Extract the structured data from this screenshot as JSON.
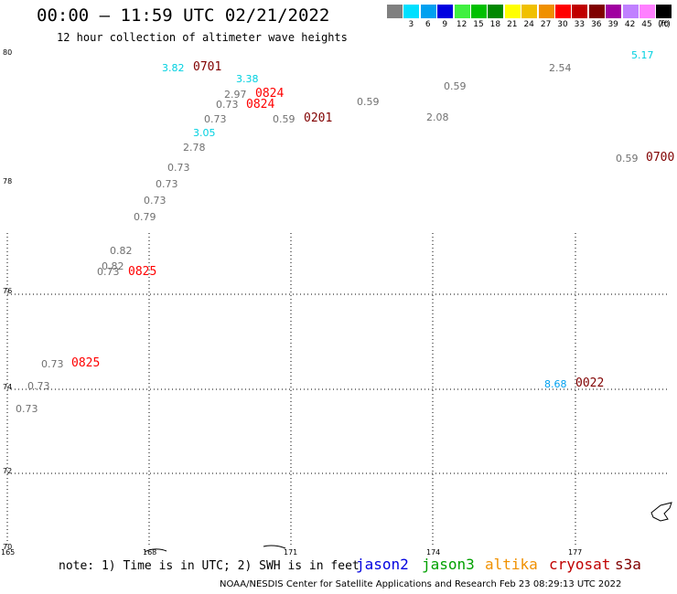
{
  "title": "00:00 – 11:59 UTC 02/21/2022",
  "subtitle": "12 hour collection of altimeter wave heights",
  "colorbar": {
    "unit": "(ft)",
    "items": [
      {
        "label": "",
        "color": "#808080"
      },
      {
        "label": "3",
        "color": "#00e0ff"
      },
      {
        "label": "6",
        "color": "#00a0f0"
      },
      {
        "label": "9",
        "color": "#0000e0"
      },
      {
        "label": "12",
        "color": "#40f040"
      },
      {
        "label": "15",
        "color": "#00c000"
      },
      {
        "label": "18",
        "color": "#008800"
      },
      {
        "label": "21",
        "color": "#ffff00"
      },
      {
        "label": "24",
        "color": "#f0c000"
      },
      {
        "label": "27",
        "color": "#f09000"
      },
      {
        "label": "30",
        "color": "#ff0000"
      },
      {
        "label": "33",
        "color": "#c00000"
      },
      {
        "label": "36",
        "color": "#800000"
      },
      {
        "label": "39",
        "color": "#a000a0"
      },
      {
        "label": "42",
        "color": "#c080ff"
      },
      {
        "label": "45",
        "color": "#ff80ff"
      },
      {
        "label": "70",
        "color": "#000000"
      }
    ]
  },
  "lat_labels": [
    "80",
    "78",
    "76",
    "74",
    "72",
    "70"
  ],
  "lon_labels": [
    "165",
    "168",
    "171",
    "174",
    "177"
  ],
  "readings": [
    {
      "value": "3.82",
      "color": "#00d0e0"
    },
    {
      "value": "3.38",
      "color": "#00d0e0"
    },
    {
      "value": "2.97",
      "color": "#707070"
    },
    {
      "value": "0.73",
      "color": "#707070"
    },
    {
      "value": "0.73",
      "color": "#707070"
    },
    {
      "value": "0.59",
      "color": "#707070"
    },
    {
      "value": "0.59",
      "color": "#707070"
    },
    {
      "value": "3.05",
      "color": "#00d0e0"
    },
    {
      "value": "2.78",
      "color": "#707070"
    },
    {
      "value": "0.73",
      "color": "#707070"
    },
    {
      "value": "0.73",
      "color": "#707070"
    },
    {
      "value": "0.73",
      "color": "#707070"
    },
    {
      "value": "0.79",
      "color": "#707070"
    },
    {
      "value": "0.82",
      "color": "#707070"
    },
    {
      "value": "0.82",
      "color": "#707070"
    },
    {
      "value": "0.73",
      "color": "#707070"
    },
    {
      "value": "0.73",
      "color": "#707070"
    },
    {
      "value": "0.73",
      "color": "#707070"
    },
    {
      "value": "0.73",
      "color": "#707070"
    },
    {
      "value": "0.59",
      "color": "#707070"
    },
    {
      "value": "2.08",
      "color": "#707070"
    },
    {
      "value": "2.54",
      "color": "#707070"
    },
    {
      "value": "5.17",
      "color": "#00d0e0"
    },
    {
      "value": "0.59",
      "color": "#707070"
    },
    {
      "value": "8.68",
      "color": "#00a0f0"
    }
  ],
  "times": [
    {
      "value": "0701",
      "color": "#800000"
    },
    {
      "value": "0824",
      "color": "#ff0000"
    },
    {
      "value": "0824",
      "color": "#ff0000"
    },
    {
      "value": "0201",
      "color": "#800000"
    },
    {
      "value": "0825",
      "color": "#ff0000"
    },
    {
      "value": "0825",
      "color": "#ff0000"
    },
    {
      "value": "0700",
      "color": "#800000"
    },
    {
      "value": "0022",
      "color": "#800000"
    }
  ],
  "note": "note: 1) Time is in UTC; 2) SWH is in feet",
  "legend": [
    {
      "label": "jason2",
      "color": "#0000e0"
    },
    {
      "label": "jason3",
      "color": "#00a000"
    },
    {
      "label": "altika",
      "color": "#f09000"
    },
    {
      "label": "cryosat",
      "color": "#c00000"
    },
    {
      "label": "s3a",
      "color": "#800000"
    }
  ],
  "footer": "NOAA/NESDIS Center for Satellite Applications and Research   Feb 23 08:29:13 UTC 2022"
}
